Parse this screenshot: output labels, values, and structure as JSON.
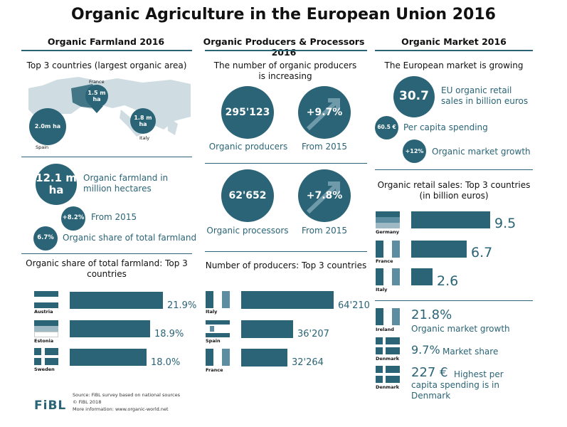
{
  "title": "Organic Agriculture in the European Union 2016",
  "colors": {
    "accent": "#2a6476",
    "light": "#5d8da0"
  },
  "farmland": {
    "heading": "Organic Farmland 2016",
    "top3_title": "Top 3 countries (largest organic area)",
    "map": {
      "france_label": "France",
      "france_value": "1.5 m ha",
      "spain_label": "Spain",
      "spain_value": "2.0m ha",
      "italy_label": "Italy",
      "italy_value": "1.8 m ha"
    },
    "area_value": "12.1 m ha",
    "area_label": "Organic farmland in million hectares",
    "growth_value": "+8.2%",
    "growth_label": "From 2015",
    "share_value": "6.7%",
    "share_label": "Organic share of total farmland",
    "chart_title": "Organic share of total farmland: Top 3 countries"
  },
  "producers": {
    "heading": "Organic Producers & Processors 2016",
    "increasing_title": "The number of organic producers is increasing",
    "producers_value": "295'123",
    "producers_label": "Organic producers",
    "producers_growth": "+9.7%",
    "producers_growth_label": "From 2015",
    "processors_value": "62'652",
    "processors_label": "Organic processors",
    "processors_growth": "+7.8%",
    "processors_growth_label": "From 2015",
    "chart_title": "Number of producers: Top 3 countries"
  },
  "market": {
    "heading": "Organic Market 2016",
    "growing_title": "The European market is growing",
    "sales_value": "30.7",
    "sales_label": "EU organic retail sales in billion euros",
    "capita_value": "60.5 €",
    "capita_label": "Per capita spending",
    "growth_value": "+12%",
    "growth_label": "Organic market growth",
    "chart_title": "Organic retail sales: Top 3 countries (in billion euros)",
    "ireland_label": "Ireland",
    "ireland_value": "21.8%",
    "ireland_text": "Organic market growth",
    "denmark1_label": "Denmark",
    "denmark1_value": "9.7%",
    "denmark1_text": "Market share",
    "denmark2_label": "Denmark",
    "denmark2_value": "227 €",
    "denmark2_text": "Highest per capita spending is in Denmark"
  },
  "footer": {
    "source": "Source: FiBL survey based on national sources",
    "copyright": "© FiBL 2018",
    "more": "More information: www.organic-world.net",
    "logo": "FiBL"
  },
  "chart_data": [
    {
      "type": "bar",
      "title": "Organic share of total farmland: Top 3 countries",
      "categories": [
        "Austria",
        "Estonia",
        "Sweden"
      ],
      "values": [
        21.9,
        18.9,
        18.0
      ],
      "value_labels": [
        "21.9%",
        "18.9%",
        "18.0%"
      ],
      "xlim": [
        0,
        25
      ]
    },
    {
      "type": "bar",
      "title": "Number of producers: Top 3 countries",
      "categories": [
        "Italy",
        "Spain",
        "France"
      ],
      "values": [
        64210,
        36207,
        32264
      ],
      "value_labels": [
        "64'210",
        "36'207",
        "32'264"
      ],
      "xlim": [
        0,
        70000
      ]
    },
    {
      "type": "bar",
      "title": "Organic retail sales: Top 3 countries (in billion euros)",
      "categories": [
        "Germany",
        "France",
        "Italy"
      ],
      "values": [
        9.5,
        6.7,
        2.6
      ],
      "value_labels": [
        "9.5",
        "6.7",
        "2.6"
      ],
      "xlim": [
        0,
        12
      ]
    }
  ]
}
